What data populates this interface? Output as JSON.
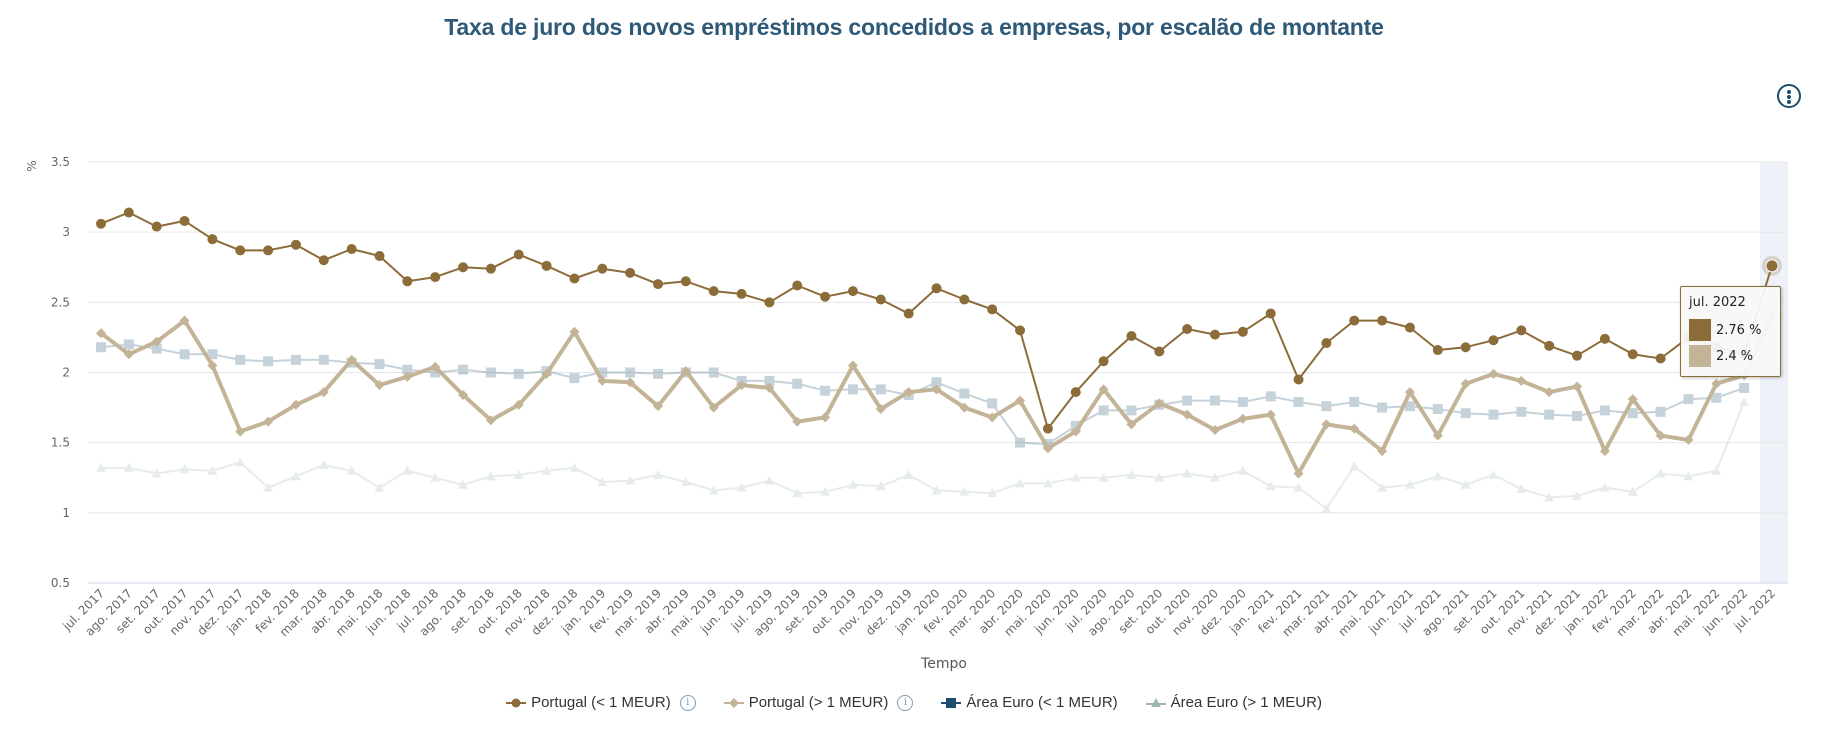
{
  "title": "Taxa de juro dos novos empréstimos concedidos a empresas, por escalão de montante",
  "menu": {
    "icon": "more-vertical-icon"
  },
  "tooltip": {
    "title": "jul. 2022",
    "rows": [
      {
        "series": "Portugal (< 1 MEUR)",
        "value": "2.76 %",
        "color": "#8c6d3a"
      },
      {
        "series": "Portugal (> 1 MEUR)",
        "value": "2.4 %",
        "color": "#c4b497"
      }
    ]
  },
  "legend": [
    {
      "label": "Portugal (< 1 MEUR)",
      "info": "i",
      "color": "#8c6d3a",
      "marker": "circle"
    },
    {
      "label": "Portugal (> 1 MEUR)",
      "info": "i",
      "color": "#c4b497",
      "marker": "diamond"
    },
    {
      "label": "Área Euro (< 1 MEUR)",
      "color": "#1d4e6e",
      "marker": "square"
    },
    {
      "label": "Área Euro (> 1 MEUR)",
      "color": "#9fb7b4",
      "marker": "triangle"
    }
  ],
  "chart_data": {
    "type": "line",
    "title": "Taxa de juro dos novos empréstimos concedidos a empresas, por escalão de montante",
    "xlabel": "Tempo",
    "ylabel": "%",
    "ylim": [
      0.5,
      3.5
    ],
    "yticks": [
      "0.5",
      "1",
      "1.5",
      "2",
      "2.5",
      "3",
      "3.5"
    ],
    "grid": true,
    "legend_position": "bottom",
    "highlighted_category": "jul. 2022",
    "categories": [
      "jul. 2017",
      "ago. 2017",
      "set. 2017",
      "out. 2017",
      "nov. 2017",
      "dez. 2017",
      "jan. 2018",
      "fev. 2018",
      "mar. 2018",
      "abr. 2018",
      "mai. 2018",
      "jun. 2018",
      "jul. 2018",
      "ago. 2018",
      "set. 2018",
      "out. 2018",
      "nov. 2018",
      "dez. 2018",
      "jan. 2019",
      "fev. 2019",
      "mar. 2019",
      "abr. 2019",
      "mai. 2019",
      "jun. 2019",
      "jul. 2019",
      "ago. 2019",
      "set. 2019",
      "out. 2019",
      "nov. 2019",
      "dez. 2019",
      "jan. 2020",
      "fev. 2020",
      "mar. 2020",
      "abr. 2020",
      "mai. 2020",
      "jun. 2020",
      "jul. 2020",
      "ago. 2020",
      "set. 2020",
      "out. 2020",
      "nov. 2020",
      "dez. 2020",
      "jan. 2021",
      "fev. 2021",
      "mar. 2021",
      "abr. 2021",
      "mai. 2021",
      "jun. 2021",
      "jul. 2021",
      "ago. 2021",
      "set. 2021",
      "out. 2021",
      "nov. 2021",
      "dez. 2021",
      "jan. 2022",
      "fev. 2022",
      "mar. 2022",
      "abr. 2022",
      "mai. 2022",
      "jun. 2022",
      "jul. 2022"
    ],
    "series": [
      {
        "name": "Portugal (< 1 MEUR)",
        "color": "#8c6d3a",
        "marker": "circle",
        "values": [
          3.06,
          3.14,
          3.04,
          3.08,
          2.95,
          2.87,
          2.87,
          2.91,
          2.8,
          2.88,
          2.83,
          2.65,
          2.68,
          2.75,
          2.74,
          2.84,
          2.76,
          2.67,
          2.74,
          2.71,
          2.63,
          2.65,
          2.58,
          2.56,
          2.5,
          2.62,
          2.54,
          2.58,
          2.52,
          2.42,
          2.6,
          2.52,
          2.45,
          2.3,
          1.6,
          1.86,
          2.08,
          2.26,
          2.15,
          2.31,
          2.27,
          2.29,
          2.42,
          1.95,
          2.21,
          2.37,
          2.37,
          2.32,
          2.16,
          2.18,
          2.23,
          2.3,
          2.19,
          2.12,
          2.24,
          2.13,
          2.1,
          2.25,
          2.18,
          2.13,
          2.76
        ]
      },
      {
        "name": "Portugal (> 1 MEUR)",
        "color": "#c4b497",
        "marker": "diamond",
        "values": [
          2.28,
          2.13,
          2.22,
          2.37,
          2.05,
          1.58,
          1.65,
          1.77,
          1.86,
          2.09,
          1.91,
          1.97,
          2.04,
          1.84,
          1.66,
          1.77,
          1.99,
          2.29,
          1.94,
          1.93,
          1.76,
          2.01,
          1.75,
          1.91,
          1.89,
          1.65,
          1.68,
          2.05,
          1.74,
          1.86,
          1.88,
          1.75,
          1.68,
          1.8,
          1.46,
          1.58,
          1.88,
          1.63,
          1.78,
          1.7,
          1.59,
          1.67,
          1.7,
          1.28,
          1.63,
          1.6,
          1.44,
          1.86,
          1.55,
          1.92,
          1.99,
          1.94,
          1.86,
          1.9,
          1.44,
          1.81,
          1.55,
          1.52,
          1.92,
          1.98,
          2.4
        ]
      },
      {
        "name": "Área Euro (< 1 MEUR)",
        "color": "#1d4e6e",
        "marker": "square",
        "values": [
          2.18,
          2.2,
          2.17,
          2.13,
          2.13,
          2.09,
          2.08,
          2.09,
          2.09,
          2.07,
          2.06,
          2.02,
          2.0,
          2.02,
          2.0,
          1.99,
          2.01,
          1.96,
          2.0,
          2.0,
          1.99,
          2.0,
          2.0,
          1.94,
          1.94,
          1.92,
          1.87,
          1.88,
          1.88,
          1.84,
          1.93,
          1.85,
          1.78,
          1.5,
          1.49,
          1.62,
          1.73,
          1.73,
          1.77,
          1.8,
          1.8,
          1.79,
          1.83,
          1.79,
          1.76,
          1.79,
          1.75,
          1.76,
          1.74,
          1.71,
          1.7,
          1.72,
          1.7,
          1.69,
          1.73,
          1.71,
          1.72,
          1.81,
          1.82,
          1.89,
          null
        ]
      },
      {
        "name": "Área Euro (> 1 MEUR)",
        "color": "#9fb7b4",
        "marker": "triangle",
        "values": [
          1.32,
          1.32,
          1.28,
          1.31,
          1.3,
          1.36,
          1.18,
          1.26,
          1.34,
          1.3,
          1.18,
          1.3,
          1.25,
          1.2,
          1.26,
          1.27,
          1.3,
          1.32,
          1.22,
          1.23,
          1.27,
          1.22,
          1.16,
          1.18,
          1.23,
          1.14,
          1.15,
          1.2,
          1.19,
          1.27,
          1.16,
          1.15,
          1.14,
          1.21,
          1.21,
          1.25,
          1.25,
          1.27,
          1.25,
          1.28,
          1.25,
          1.3,
          1.19,
          1.18,
          1.03,
          1.33,
          1.18,
          1.2,
          1.26,
          1.2,
          1.27,
          1.17,
          1.11,
          1.12,
          1.18,
          1.15,
          1.28,
          1.26,
          1.3,
          1.79,
          null
        ]
      }
    ]
  }
}
